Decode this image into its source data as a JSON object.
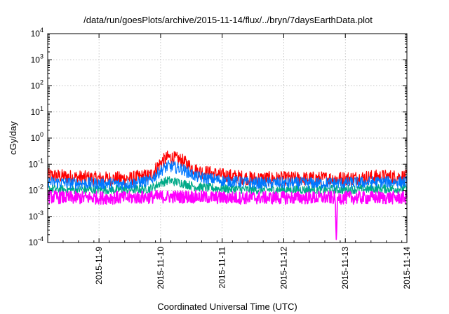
{
  "chart_data": {
    "type": "line",
    "title": "/data/run/goesPlots/archive/2015-11-14/flux/../bryn/7daysEarthData.plot",
    "xlabel": "Coordinated Universal Time (UTC)",
    "ylabel": "cGy/day",
    "y_scale": "log",
    "ylim": [
      0.0001,
      10000
    ],
    "y_ticks": [
      {
        "value": 0.0001,
        "base": "10",
        "exp": "-4"
      },
      {
        "value": 0.001,
        "base": "10",
        "exp": "-3"
      },
      {
        "value": 0.01,
        "base": "10",
        "exp": "-2"
      },
      {
        "value": 0.1,
        "base": "10",
        "exp": "-1"
      },
      {
        "value": 1,
        "base": "10",
        "exp": "0"
      },
      {
        "value": 10,
        "base": "10",
        "exp": "1"
      },
      {
        "value": 100,
        "base": "10",
        "exp": "2"
      },
      {
        "value": 1000,
        "base": "10",
        "exp": "3"
      },
      {
        "value": 10000,
        "base": "10",
        "exp": "4"
      }
    ],
    "xlim": [
      "2015-11-08T04:00",
      "2015-11-14T00:00"
    ],
    "x_ticks": [
      "2015-11-9",
      "2015-11-10",
      "2015-11-11",
      "2015-11-12",
      "2015-11-13",
      "2015-11-14"
    ],
    "grid": true,
    "legend": "none",
    "series_colors": [
      "#ff0000",
      "#00aa88",
      "#0077ff",
      "#ff00ff"
    ],
    "series": [
      {
        "color": "#ff0000",
        "x": [
          "2015-11-08T04:00",
          "2015-11-08T12:00",
          "2015-11-09T00:00",
          "2015-11-09T12:00",
          "2015-11-09T20:00",
          "2015-11-10T00:00",
          "2015-11-10T03:00",
          "2015-11-10T08:00",
          "2015-11-10T14:00",
          "2015-11-11T00:00",
          "2015-11-11T12:00",
          "2015-11-12T00:00",
          "2015-11-12T12:00",
          "2015-11-13T00:00",
          "2015-11-13T12:00",
          "2015-11-14T00:00"
        ],
        "values": [
          0.04,
          0.035,
          0.03,
          0.03,
          0.04,
          0.12,
          0.2,
          0.15,
          0.06,
          0.04,
          0.03,
          0.03,
          0.03,
          0.03,
          0.035,
          0.035
        ]
      },
      {
        "color": "#00aa88",
        "x": [
          "2015-11-08T04:00",
          "2015-11-08T12:00",
          "2015-11-09T00:00",
          "2015-11-09T12:00",
          "2015-11-09T20:00",
          "2015-11-10T00:00",
          "2015-11-10T03:00",
          "2015-11-10T08:00",
          "2015-11-10T14:00",
          "2015-11-11T00:00",
          "2015-11-11T12:00",
          "2015-11-12T00:00",
          "2015-11-12T12:00",
          "2015-11-13T00:00",
          "2015-11-13T12:00",
          "2015-11-14T00:00"
        ],
        "values": [
          0.012,
          0.011,
          0.011,
          0.011,
          0.012,
          0.02,
          0.025,
          0.02,
          0.014,
          0.012,
          0.011,
          0.011,
          0.011,
          0.011,
          0.012,
          0.012
        ]
      },
      {
        "color": "#0077ff",
        "x": [
          "2015-11-08T04:00",
          "2015-11-08T12:00",
          "2015-11-09T00:00",
          "2015-11-09T12:00",
          "2015-11-09T20:00",
          "2015-11-10T00:00",
          "2015-11-10T03:00",
          "2015-11-10T08:00",
          "2015-11-10T14:00",
          "2015-11-11T00:00",
          "2015-11-11T12:00",
          "2015-11-12T00:00",
          "2015-11-12T12:00",
          "2015-11-13T00:00",
          "2015-11-13T12:00",
          "2015-11-14T00:00"
        ],
        "values": [
          0.022,
          0.02,
          0.019,
          0.019,
          0.025,
          0.06,
          0.09,
          0.07,
          0.035,
          0.025,
          0.02,
          0.02,
          0.02,
          0.02,
          0.022,
          0.022
        ]
      },
      {
        "color": "#ff00ff",
        "x": [
          "2015-11-08T04:00",
          "2015-11-08T12:00",
          "2015-11-09T00:00",
          "2015-11-09T12:00",
          "2015-11-10T00:00",
          "2015-11-10T12:00",
          "2015-11-11T00:00",
          "2015-11-11T12:00",
          "2015-11-12T00:00",
          "2015-11-12T12:00",
          "2015-11-12T20:00",
          "2015-11-12T20:30",
          "2015-11-12T21:00",
          "2015-11-13T00:00",
          "2015-11-13T12:00",
          "2015-11-14T00:00"
        ],
        "values": [
          0.006,
          0.0055,
          0.0055,
          0.0055,
          0.006,
          0.006,
          0.0055,
          0.0055,
          0.0055,
          0.0055,
          0.0055,
          0.0001,
          0.0055,
          0.0055,
          0.0055,
          0.0055
        ]
      }
    ]
  }
}
